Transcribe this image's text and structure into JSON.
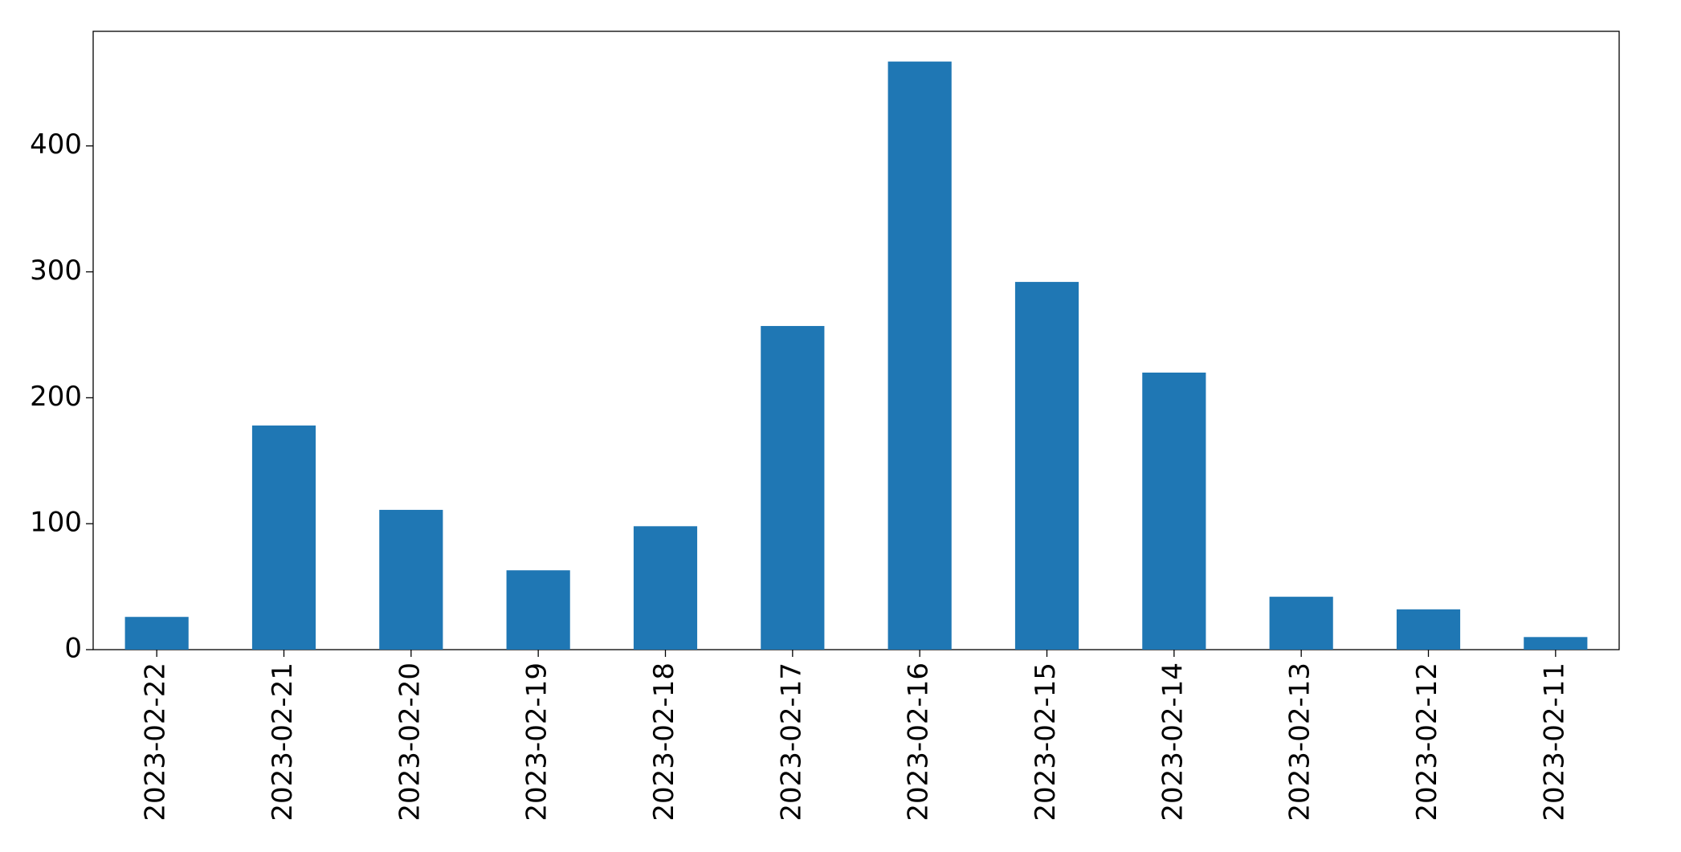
{
  "chart_data": {
    "type": "bar",
    "categories": [
      "2023-02-22",
      "2023-02-21",
      "2023-02-20",
      "2023-02-19",
      "2023-02-18",
      "2023-02-17",
      "2023-02-16",
      "2023-02-15",
      "2023-02-14",
      "2023-02-13",
      "2023-02-12",
      "2023-02-11"
    ],
    "values": [
      26,
      178,
      111,
      63,
      98,
      257,
      467,
      292,
      220,
      42,
      32,
      10
    ],
    "color": "#1f77b4",
    "ylim": [
      0,
      491
    ],
    "yticks": [
      0,
      100,
      200,
      300,
      400
    ],
    "grid": false
  }
}
